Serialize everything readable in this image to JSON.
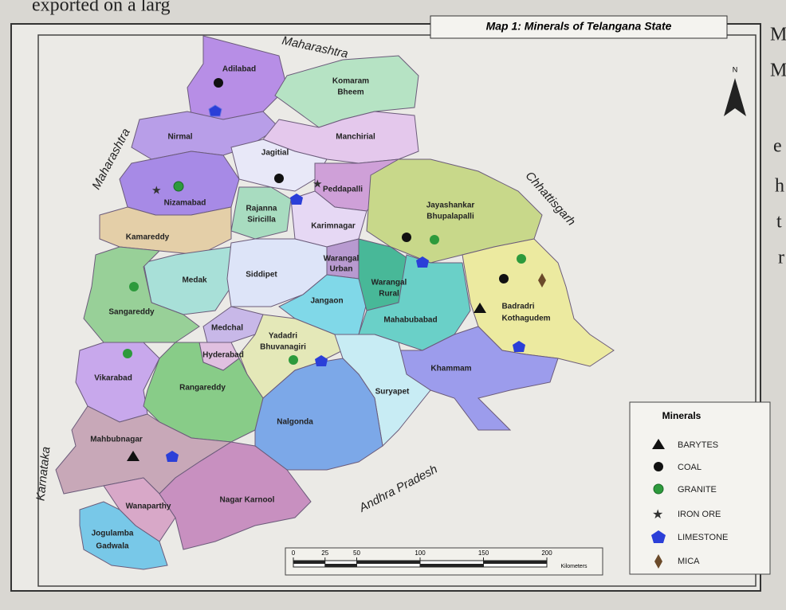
{
  "page_text": {
    "top": "exported on a larg",
    "right": [
      "M",
      "M",
      "e",
      "h",
      "t",
      "r"
    ]
  },
  "title": "Map 1: Minerals of Telangana State",
  "north": "N",
  "neighbors": [
    "Maharashtra",
    "Maharashtra",
    "Chhattisgarh",
    "Andhra Pradesh",
    "Karnataka"
  ],
  "districts": [
    [
      "Adilabad"
    ],
    [
      "Komaram",
      "Bheem"
    ],
    [
      "Nirmal"
    ],
    [
      "Manchirial"
    ],
    [
      "Jagitial"
    ],
    [
      "Peddapalli"
    ],
    [
      "Nizamabad"
    ],
    [
      "Rajanna",
      "Siricilla"
    ],
    [
      "Karimnagar"
    ],
    [
      "Jayashankar",
      "Bhupalapalli"
    ],
    [
      "Kamareddy"
    ],
    [
      "Warangal",
      "Urban"
    ],
    [
      "Medak"
    ],
    [
      "Siddipet"
    ],
    [
      "Sangareddy"
    ],
    [
      "Jangaon"
    ],
    [
      "Warangal",
      "Rural"
    ],
    [
      "Badradri",
      "Kothagudem"
    ],
    [
      "Mahabubabad"
    ],
    [
      "Medchal"
    ],
    [
      "Hyderabad"
    ],
    [
      "Yadadri",
      "Bhuvanagiri"
    ],
    [
      "Vikarabad"
    ],
    [
      "Rangareddy"
    ],
    [
      "Khammam"
    ],
    [
      "Suryapet"
    ],
    [
      "Nalgonda"
    ],
    [
      "Mahbubnagar"
    ],
    [
      "Wanaparthy"
    ],
    [
      "Nagar Karnool"
    ],
    [
      "Jogulamba",
      "Gadwala"
    ]
  ],
  "legend": {
    "title": "Minerals",
    "items": [
      "BARYTES",
      "COAL",
      "GRANITE",
      "IRON ORE",
      "LIMESTONE",
      "MICA"
    ]
  },
  "scale": {
    "ticks": [
      0,
      25,
      50,
      100,
      150,
      200
    ],
    "unit": "Kilometers"
  }
}
